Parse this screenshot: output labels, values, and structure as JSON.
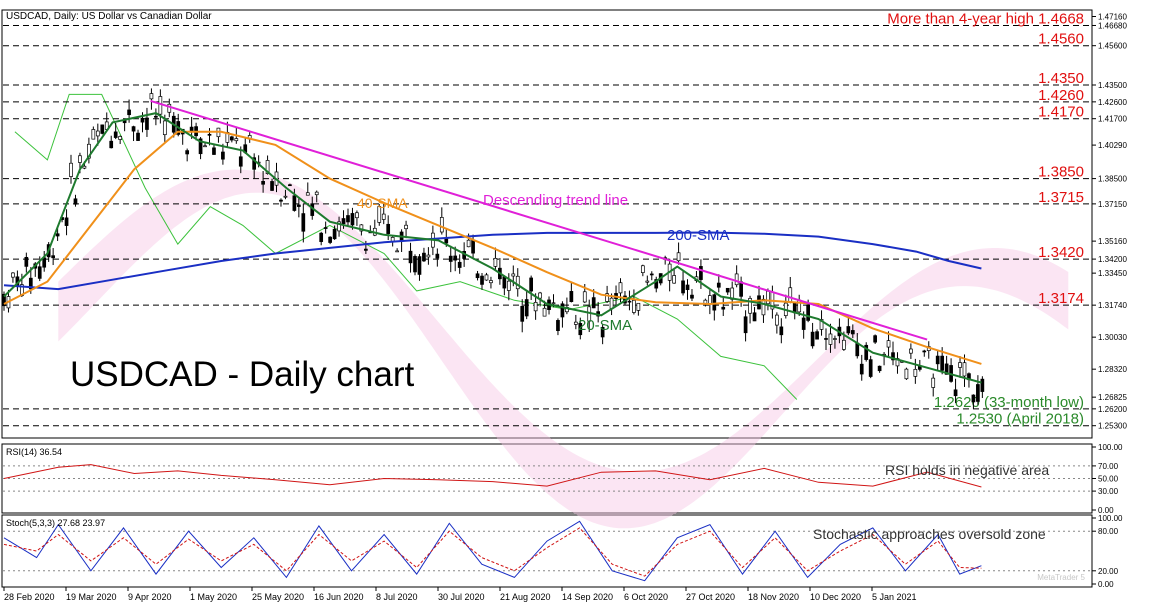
{
  "window": {
    "title": "USDCAD, Daily:  US Dollar vs Canadian Dollar",
    "watermark_brand": "MetaTrader 5"
  },
  "chart_data": [
    {
      "type": "line",
      "title": "USDCAD - Daily chart",
      "ylim": [
        1.2475,
        1.474
      ],
      "grid": false,
      "price_ticks": [
        "1.47160",
        "1.46680",
        "1.45600",
        "1.43500",
        "1.42600",
        "1.41700",
        "1.40290",
        "1.38500",
        "1.37150",
        "1.35160",
        "1.34200",
        "1.33450",
        "1.31740",
        "1.30030",
        "1.28320",
        "1.26825",
        "1.26200",
        "1.25300"
      ],
      "x_ticks": [
        "28 Feb 2020",
        "19 Mar 2020",
        "9 Apr 2020",
        "1 May 2020",
        "25 May 2020",
        "16 Jun 2020",
        "8 Jul 2020",
        "30 Jul 2020",
        "21 Aug 2020",
        "14 Sep 2020",
        "6 Oct 2020",
        "27 Oct 2020",
        "18 Nov 2020",
        "10 Dec 2020",
        "5 Jan 2021"
      ],
      "levels": [
        {
          "value": 1.4668,
          "label": "More than 4-year high 1.4668",
          "color": "#e01010"
        },
        {
          "value": 1.456,
          "label": "1.4560",
          "color": "#e01010"
        },
        {
          "value": 1.435,
          "label": "1.4350",
          "color": "#e01010"
        },
        {
          "value": 1.426,
          "label": "1.4260",
          "color": "#e01010"
        },
        {
          "value": 1.417,
          "label": "1.4170",
          "color": "#e01010"
        },
        {
          "value": 1.385,
          "label": "1.3850",
          "color": "#e01010"
        },
        {
          "value": 1.3715,
          "label": "1.3715",
          "color": "#e01010"
        },
        {
          "value": 1.342,
          "label": "1.3420",
          "color": "#e01010"
        },
        {
          "value": 1.3174,
          "label": "1.3174",
          "color": "#e01010"
        },
        {
          "value": 1.262,
          "label": "1.2620 (33-month low)",
          "color": "#2a8a2a"
        },
        {
          "value": 1.253,
          "label": "1.2530 (April 2018)",
          "color": "#2a8a2a"
        }
      ],
      "series": [
        {
          "name": "200-SMA",
          "color": "#1a2fc4",
          "points": [
            [
              0,
              1.328
            ],
            [
              0.05,
              1.326
            ],
            [
              0.1,
              1.331
            ],
            [
              0.15,
              1.336
            ],
            [
              0.2,
              1.341
            ],
            [
              0.25,
              1.345
            ],
            [
              0.3,
              1.348
            ],
            [
              0.35,
              1.351
            ],
            [
              0.4,
              1.353
            ],
            [
              0.45,
              1.355
            ],
            [
              0.5,
              1.356
            ],
            [
              0.55,
              1.356
            ],
            [
              0.6,
              1.356
            ],
            [
              0.65,
              1.3562
            ],
            [
              0.7,
              1.3555
            ],
            [
              0.75,
              1.354
            ],
            [
              0.8,
              1.35
            ],
            [
              0.84,
              1.346
            ],
            [
              0.87,
              1.341
            ],
            [
              0.9,
              1.337
            ]
          ]
        },
        {
          "name": "40-SMA",
          "color": "#f0901a",
          "points": [
            [
              0,
              1.318
            ],
            [
              0.04,
              1.33
            ],
            [
              0.08,
              1.36
            ],
            [
              0.12,
              1.39
            ],
            [
              0.16,
              1.41
            ],
            [
              0.2,
              1.41
            ],
            [
              0.25,
              1.403
            ],
            [
              0.3,
              1.385
            ],
            [
              0.35,
              1.372
            ],
            [
              0.4,
              1.36
            ],
            [
              0.45,
              1.348
            ],
            [
              0.5,
              1.335
            ],
            [
              0.55,
              1.323
            ],
            [
              0.6,
              1.319
            ],
            [
              0.65,
              1.318
            ],
            [
              0.7,
              1.32
            ],
            [
              0.75,
              1.318
            ],
            [
              0.8,
              1.305
            ],
            [
              0.85,
              1.295
            ],
            [
              0.9,
              1.286
            ]
          ]
        },
        {
          "name": "20-SMA",
          "color": "#1e7a2e",
          "points": [
            [
              0,
              1.322
            ],
            [
              0.04,
              1.345
            ],
            [
              0.07,
              1.39
            ],
            [
              0.1,
              1.415
            ],
            [
              0.14,
              1.42
            ],
            [
              0.18,
              1.405
            ],
            [
              0.22,
              1.4
            ],
            [
              0.26,
              1.38
            ],
            [
              0.3,
              1.362
            ],
            [
              0.35,
              1.355
            ],
            [
              0.4,
              1.352
            ],
            [
              0.45,
              1.337
            ],
            [
              0.5,
              1.318
            ],
            [
              0.55,
              1.312
            ],
            [
              0.6,
              1.33
            ],
            [
              0.62,
              1.338
            ],
            [
              0.66,
              1.322
            ],
            [
              0.7,
              1.318
            ],
            [
              0.75,
              1.31
            ],
            [
              0.8,
              1.292
            ],
            [
              0.85,
              1.284
            ],
            [
              0.9,
              1.276
            ]
          ]
        },
        {
          "name": "Descending trend line",
          "color": "#e020d8",
          "points": [
            [
              0.135,
              1.4265
            ],
            [
              0.85,
              1.299
            ]
          ]
        }
      ],
      "annotations": [
        {
          "text": "40-SMA",
          "color": "#f0901a"
        },
        {
          "text": "Descending trend line",
          "color": "#e020d8"
        },
        {
          "text": "200-SMA",
          "color": "#1a2fc4"
        },
        {
          "text": "20-SMA",
          "color": "#1e7a2e"
        }
      ]
    },
    {
      "type": "line",
      "title": "RSI(14) 36.54",
      "ylim": [
        0,
        100
      ],
      "ticks": [
        "100.00",
        "70.00",
        "50.00",
        "30.00",
        "0.00"
      ],
      "annotation": "RSI holds in negative area",
      "series": [
        {
          "name": "RSI(14)",
          "color": "#d01515",
          "points": [
            [
              0,
              50
            ],
            [
              0.05,
              68
            ],
            [
              0.08,
              72
            ],
            [
              0.12,
              58
            ],
            [
              0.16,
              62
            ],
            [
              0.2,
              55
            ],
            [
              0.25,
              48
            ],
            [
              0.3,
              40
            ],
            [
              0.35,
              50
            ],
            [
              0.4,
              48
            ],
            [
              0.45,
              45
            ],
            [
              0.5,
              38
            ],
            [
              0.55,
              60
            ],
            [
              0.6,
              62
            ],
            [
              0.65,
              48
            ],
            [
              0.7,
              66
            ],
            [
              0.75,
              44
            ],
            [
              0.8,
              38
            ],
            [
              0.85,
              60
            ],
            [
              0.9,
              36.54
            ]
          ]
        }
      ]
    },
    {
      "type": "line",
      "title": "Stoch(5,3,3) 27.68 23.97",
      "ylim": [
        0,
        100
      ],
      "ticks": [
        "100.00",
        "80.00",
        "20.00",
        "0.00"
      ],
      "annotation": "Stochastic approaches oversold zone",
      "series": [
        {
          "name": "Stoch %K",
          "color": "#1a2fc4",
          "points": [
            [
              0,
              70
            ],
            [
              0.03,
              40
            ],
            [
              0.05,
              90
            ],
            [
              0.08,
              20
            ],
            [
              0.11,
              85
            ],
            [
              0.14,
              15
            ],
            [
              0.17,
              80
            ],
            [
              0.2,
              25
            ],
            [
              0.23,
              70
            ],
            [
              0.26,
              10
            ],
            [
              0.29,
              88
            ],
            [
              0.32,
              20
            ],
            [
              0.35,
              75
            ],
            [
              0.38,
              15
            ],
            [
              0.41,
              92
            ],
            [
              0.44,
              30
            ],
            [
              0.47,
              10
            ],
            [
              0.5,
              65
            ],
            [
              0.53,
              95
            ],
            [
              0.56,
              20
            ],
            [
              0.59,
              5
            ],
            [
              0.62,
              70
            ],
            [
              0.65,
              90
            ],
            [
              0.68,
              15
            ],
            [
              0.71,
              80
            ],
            [
              0.74,
              10
            ],
            [
              0.77,
              60
            ],
            [
              0.8,
              85
            ],
            [
              0.83,
              20
            ],
            [
              0.86,
              75
            ],
            [
              0.88,
              15
            ],
            [
              0.9,
              27.68
            ]
          ]
        },
        {
          "name": "Stoch %D",
          "color": "#d01515",
          "points": [
            [
              0,
              60
            ],
            [
              0.03,
              50
            ],
            [
              0.05,
              75
            ],
            [
              0.08,
              35
            ],
            [
              0.11,
              70
            ],
            [
              0.14,
              30
            ],
            [
              0.17,
              68
            ],
            [
              0.2,
              35
            ],
            [
              0.23,
              60
            ],
            [
              0.26,
              20
            ],
            [
              0.29,
              75
            ],
            [
              0.32,
              35
            ],
            [
              0.35,
              65
            ],
            [
              0.38,
              25
            ],
            [
              0.41,
              80
            ],
            [
              0.44,
              40
            ],
            [
              0.47,
              20
            ],
            [
              0.5,
              55
            ],
            [
              0.53,
              85
            ],
            [
              0.56,
              30
            ],
            [
              0.59,
              12
            ],
            [
              0.62,
              60
            ],
            [
              0.65,
              80
            ],
            [
              0.68,
              25
            ],
            [
              0.71,
              70
            ],
            [
              0.74,
              20
            ],
            [
              0.77,
              50
            ],
            [
              0.8,
              75
            ],
            [
              0.83,
              30
            ],
            [
              0.86,
              65
            ],
            [
              0.88,
              25
            ],
            [
              0.9,
              23.97
            ]
          ]
        }
      ]
    }
  ]
}
